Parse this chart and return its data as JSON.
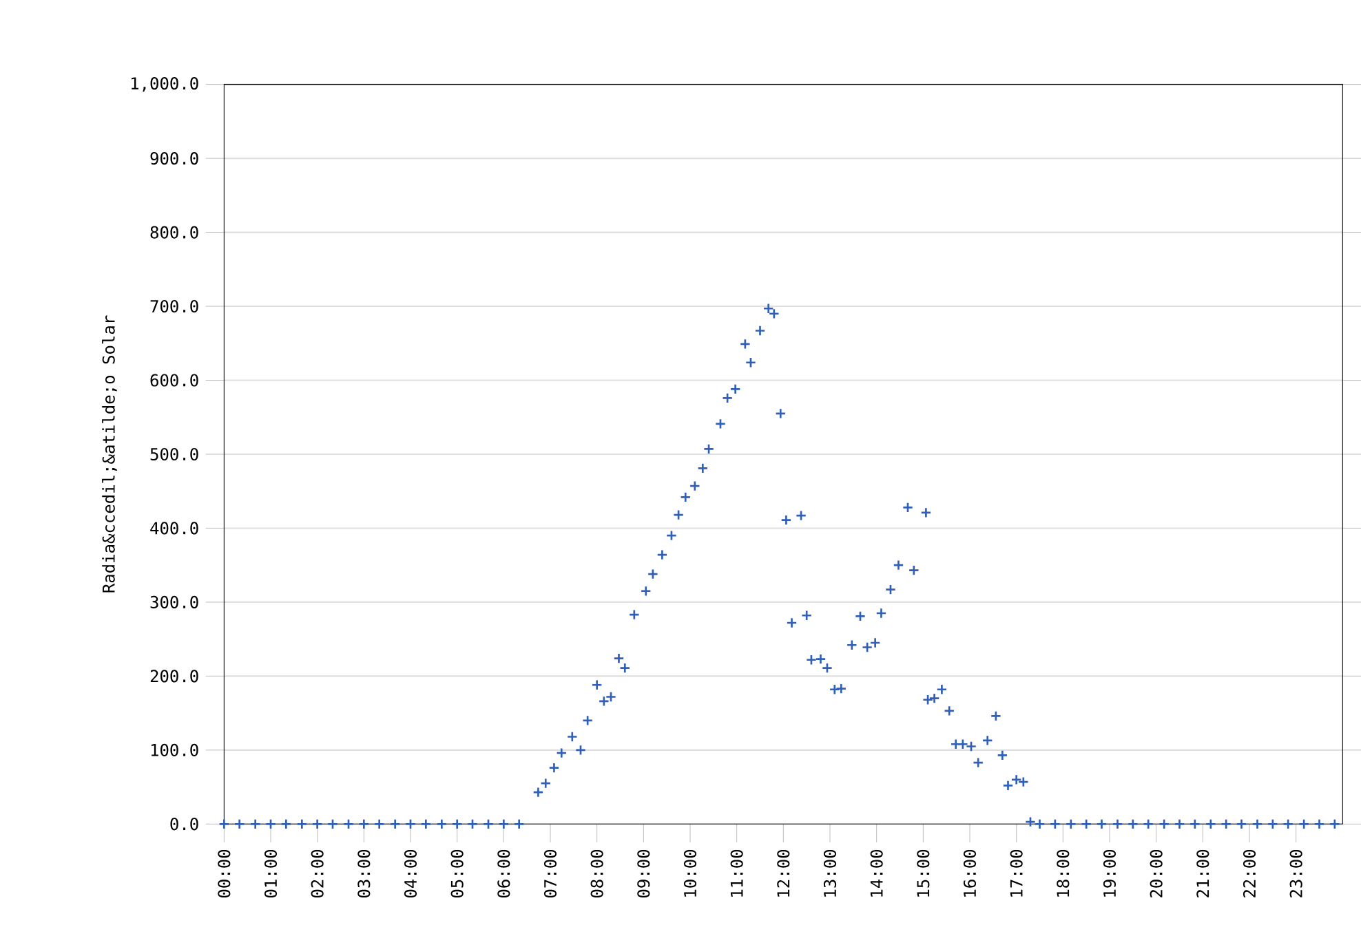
{
  "chart_data": {
    "type": "scatter",
    "ylabel": "Radia&ccedil;&atilde;o Solar",
    "x": [
      0,
      0.33,
      0.67,
      1,
      1.33,
      1.67,
      2,
      2.33,
      2.67,
      3,
      3.33,
      3.67,
      4,
      4.33,
      4.67,
      5,
      5.33,
      5.67,
      6,
      6.33,
      6.74,
      6.9,
      7.08,
      7.24,
      7.47,
      7.65,
      7.8,
      8.0,
      8.15,
      8.3,
      8.47,
      8.6,
      8.8,
      9.05,
      9.2,
      9.4,
      9.6,
      9.75,
      9.9,
      10.1,
      10.27,
      10.4,
      10.65,
      10.8,
      10.97,
      11.18,
      11.3,
      11.5,
      11.68,
      11.8,
      11.94,
      12.06,
      12.18,
      12.38,
      12.5,
      12.6,
      12.8,
      12.94,
      13.1,
      13.24,
      13.47,
      13.65,
      13.8,
      13.97,
      14.1,
      14.3,
      14.47,
      14.67,
      14.8,
      15.06,
      15.1,
      15.24,
      15.4,
      15.56,
      15.7,
      15.85,
      16.03,
      16.18,
      16.38,
      16.56,
      16.7,
      16.82,
      17.0,
      17.15,
      17.3,
      17.5,
      17.83,
      18.17,
      18.5,
      18.83,
      19.17,
      19.5,
      19.83,
      20.17,
      20.5,
      20.83,
      21.17,
      21.5,
      21.83,
      22.17,
      22.5,
      22.83,
      23.17,
      23.5,
      23.83
    ],
    "series": [
      {
        "color": "#2f5fb8",
        "values": [
          0,
          0,
          0,
          0,
          0,
          0,
          0,
          0,
          0,
          0,
          0,
          0,
          0,
          0,
          0,
          0,
          0,
          0,
          0,
          0,
          43,
          55,
          76,
          96,
          118,
          100,
          140,
          188,
          166,
          172,
          224,
          211,
          283,
          315,
          338,
          364,
          390,
          418,
          442,
          457,
          481,
          507,
          541,
          576,
          588,
          649,
          624,
          667,
          697,
          690,
          555,
          411,
          272,
          417,
          282,
          222,
          223,
          211,
          182,
          183,
          242,
          281,
          239,
          245,
          285,
          317,
          350,
          428,
          343,
          421,
          168,
          170,
          182,
          153,
          108,
          108,
          105,
          83,
          113,
          146,
          93,
          52,
          60,
          57,
          3,
          0,
          0,
          0,
          0,
          0,
          0,
          0,
          0,
          0,
          0,
          0,
          0,
          0,
          0,
          0,
          0,
          0,
          0,
          0,
          0
        ]
      }
    ],
    "xlim": [
      0,
      24
    ],
    "ylim": [
      0,
      1000
    ],
    "xticks": [
      {
        "value": 0,
        "label": "00:00"
      },
      {
        "value": 1,
        "label": "01:00"
      },
      {
        "value": 2,
        "label": "02:00"
      },
      {
        "value": 3,
        "label": "03:00"
      },
      {
        "value": 4,
        "label": "04:00"
      },
      {
        "value": 5,
        "label": "05:00"
      },
      {
        "value": 6,
        "label": "06:00"
      },
      {
        "value": 7,
        "label": "07:00"
      },
      {
        "value": 8,
        "label": "08:00"
      },
      {
        "value": 9,
        "label": "09:00"
      },
      {
        "value": 10,
        "label": "10:00"
      },
      {
        "value": 11,
        "label": "11:00"
      },
      {
        "value": 12,
        "label": "12:00"
      },
      {
        "value": 13,
        "label": "13:00"
      },
      {
        "value": 14,
        "label": "14:00"
      },
      {
        "value": 15,
        "label": "15:00"
      },
      {
        "value": 16,
        "label": "16:00"
      },
      {
        "value": 17,
        "label": "17:00"
      },
      {
        "value": 18,
        "label": "18:00"
      },
      {
        "value": 19,
        "label": "19:00"
      },
      {
        "value": 20,
        "label": "20:00"
      },
      {
        "value": 21,
        "label": "21:00"
      },
      {
        "value": 22,
        "label": "22:00"
      },
      {
        "value": 23,
        "label": "23:00"
      }
    ],
    "yticks": [
      {
        "value": 0,
        "label": "0.0"
      },
      {
        "value": 100,
        "label": "100.0"
      },
      {
        "value": 200,
        "label": "200.0"
      },
      {
        "value": 300,
        "label": "300.0"
      },
      {
        "value": 400,
        "label": "400.0"
      },
      {
        "value": 500,
        "label": "500.0"
      },
      {
        "value": 600,
        "label": "600.0"
      },
      {
        "value": 700,
        "label": "700.0"
      },
      {
        "value": 800,
        "label": "800.0"
      },
      {
        "value": 900,
        "label": "900.0"
      },
      {
        "value": 1000,
        "label": "1,000.0"
      }
    ],
    "grid": "y",
    "marker": "cross"
  }
}
